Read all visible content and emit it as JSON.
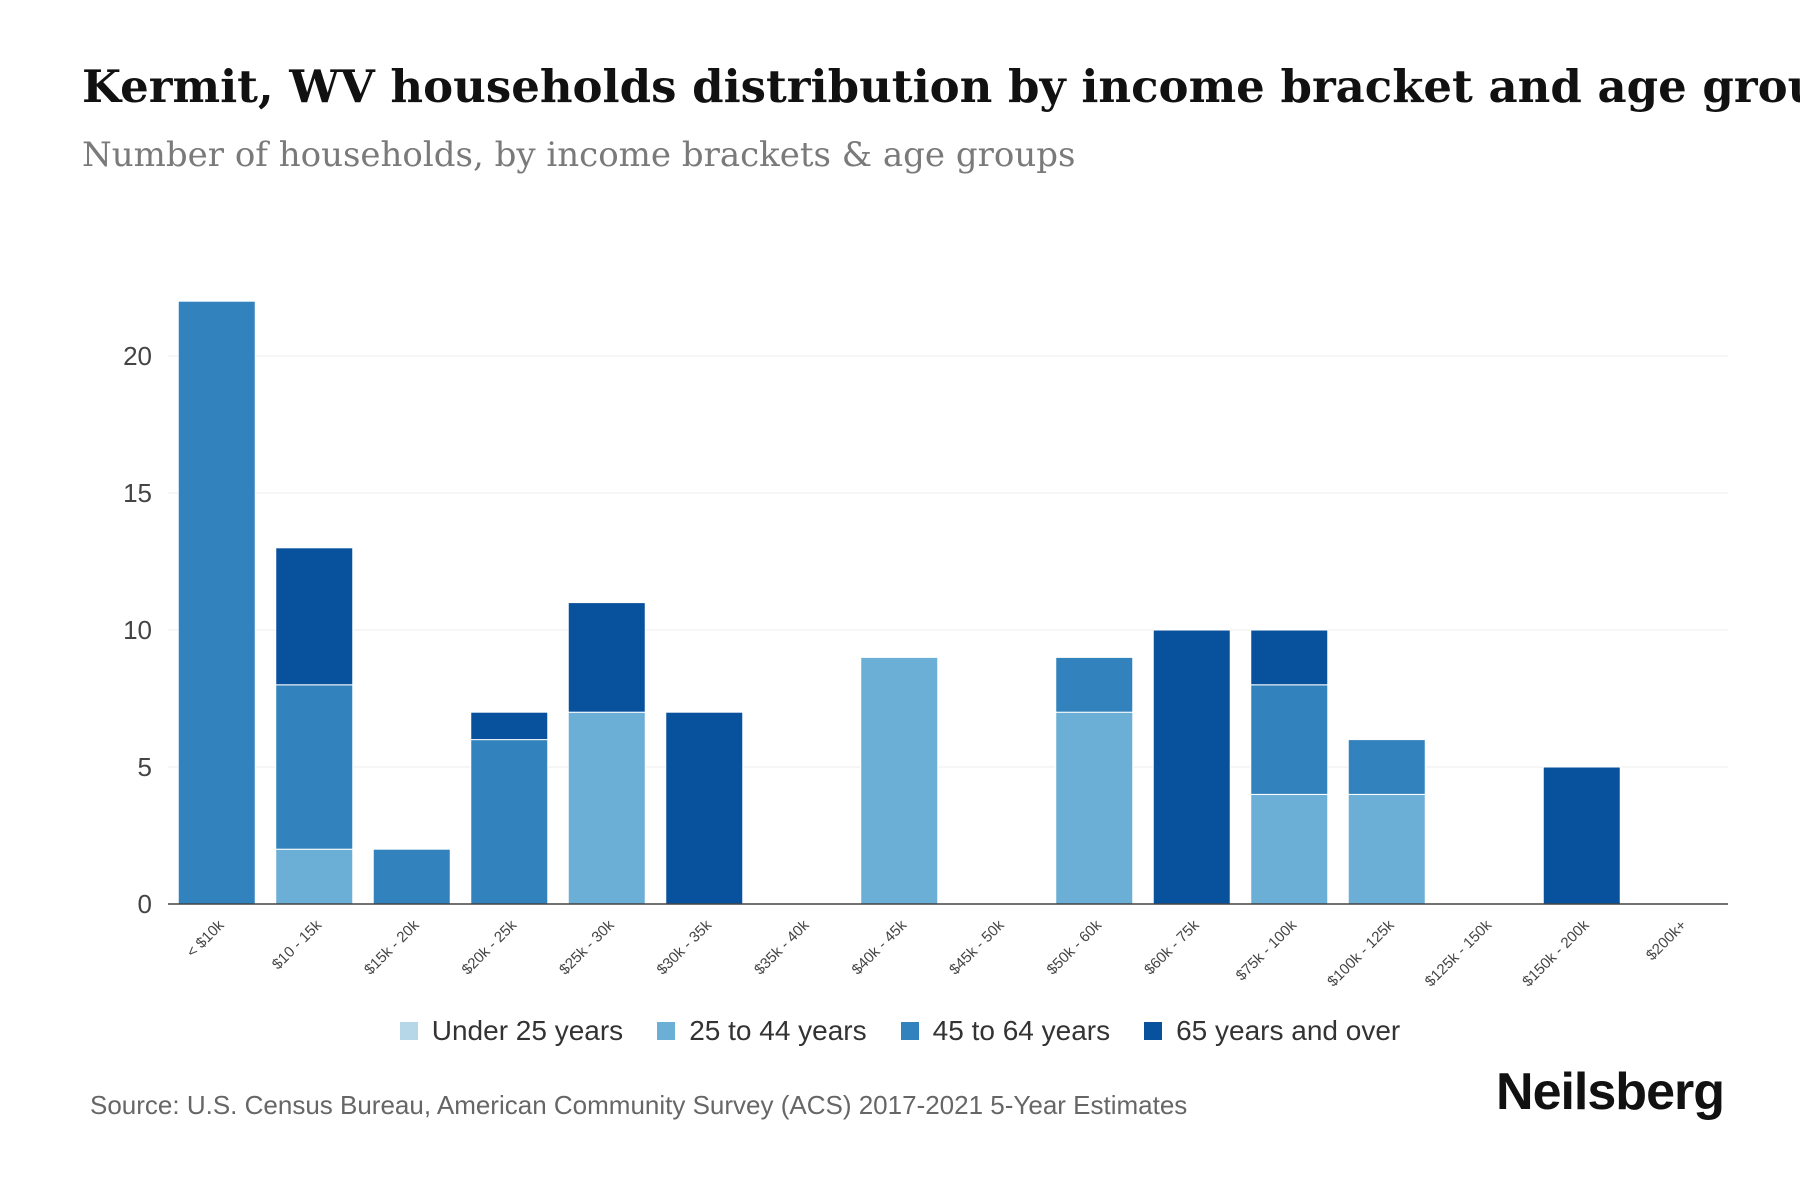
{
  "title": "Kermit, WV households distribution by income bracket and age group",
  "subtitle": "Number of households, by income brackets & age groups",
  "source": "Source: U.S. Census Bureau, American Community Survey (ACS) 2017-2021 5-Year Estimates",
  "brand": "Neilsberg",
  "colors": {
    "under_25": "#b6d7e8",
    "age_25_44": "#6baed6",
    "age_45_64": "#3182bd",
    "age_65_plus": "#08519c"
  },
  "chart_data": {
    "type": "bar",
    "stacked": true,
    "title": "Kermit, WV households distribution by income bracket and age group",
    "xlabel": "",
    "ylabel": "",
    "ylim": [
      0,
      22
    ],
    "yticks": [
      0,
      5,
      10,
      15,
      20
    ],
    "legend_position": "bottom-center",
    "grid": true,
    "categories": [
      "< $10k",
      "$10 - 15k",
      "$15k - 20k",
      "$20k - 25k",
      "$25k - 30k",
      "$30k - 35k",
      "$35k - 40k",
      "$40k - 45k",
      "$45k - 50k",
      "$50k - 60k",
      "$60k - 75k",
      "$75k - 100k",
      "$100k - 125k",
      "$125k - 150k",
      "$150k - 200k",
      "$200k+"
    ],
    "series": [
      {
        "name": "Under 25 years",
        "color": "#b6d7e8",
        "values": [
          0,
          0,
          0,
          0,
          0,
          0,
          0,
          0,
          0,
          0,
          0,
          0,
          0,
          0,
          0,
          0
        ]
      },
      {
        "name": "25 to 44 years",
        "color": "#6baed6",
        "values": [
          0,
          2,
          0,
          0,
          7,
          0,
          0,
          9,
          0,
          7,
          0,
          4,
          4,
          0,
          0,
          0
        ]
      },
      {
        "name": "45 to 64 years",
        "color": "#3182bd",
        "values": [
          22,
          6,
          2,
          6,
          0,
          0,
          0,
          0,
          0,
          2,
          0,
          4,
          2,
          0,
          0,
          0
        ]
      },
      {
        "name": "65 years and over",
        "color": "#08519c",
        "values": [
          0,
          5,
          0,
          1,
          4,
          7,
          0,
          0,
          0,
          0,
          10,
          2,
          0,
          0,
          5,
          0
        ]
      }
    ]
  }
}
